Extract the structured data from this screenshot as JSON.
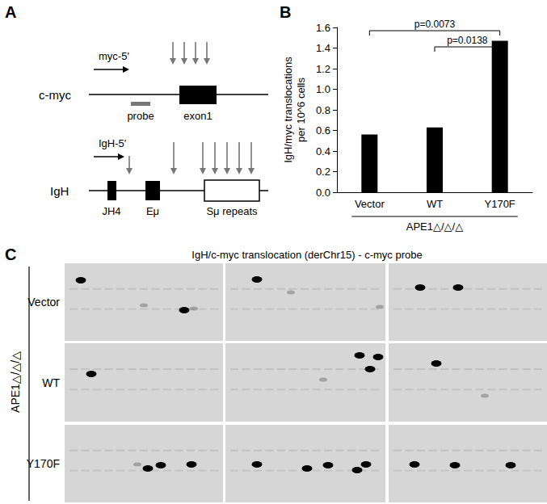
{
  "panel_labels": [
    "A",
    "B",
    "C"
  ],
  "diagram": {
    "loci": [
      {
        "name": "c-myc",
        "primer": "myc-5'",
        "features": [
          "probe",
          "exon1"
        ]
      },
      {
        "name": "IgH",
        "primer": "IgH-5'",
        "features": [
          "JH4",
          "Eμ",
          "Sμ repeats"
        ]
      }
    ]
  },
  "chart_data": {
    "type": "bar",
    "categories": [
      "Vector",
      "WT",
      "Y170F"
    ],
    "values": [
      0.56,
      0.63,
      1.47
    ],
    "color": "#000000",
    "ylabel": "IgH/myc translocations\nper 10^6 cells",
    "xlabel": "APE1△/△/△",
    "ylim": [
      0,
      1.6
    ],
    "yticks": [
      {
        "value": 0,
        "label": "0.0"
      },
      {
        "value": 0.2,
        "label": "0.2"
      },
      {
        "value": 0.4,
        "label": "0.4"
      },
      {
        "value": 0.6,
        "label": "0.6"
      },
      {
        "value": 0.8,
        "label": "0.8"
      },
      {
        "value": 1.0,
        "label": "1.0"
      },
      {
        "value": 1.2,
        "label": "1.2"
      },
      {
        "value": 1.4,
        "label": "1.4"
      },
      {
        "value": 1.6,
        "label": "1.6"
      }
    ],
    "annotations": [
      {
        "text": "p=0.0073",
        "from": "Vector",
        "to": "Y170F"
      },
      {
        "text": "p=0.0138",
        "from": "WT",
        "to": "Y170F"
      }
    ],
    "grid": false
  },
  "gel": {
    "title": "IgH/c-myc translocation (derChr15) - c-myc probe",
    "group_label": "APE1△/△/△",
    "rows": [
      "Vector",
      "WT",
      "Y170F"
    ]
  }
}
